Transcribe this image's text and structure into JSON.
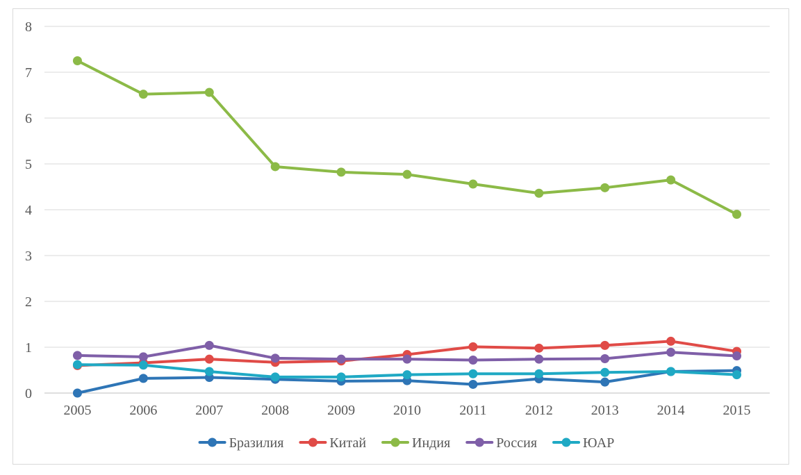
{
  "chart_data": {
    "type": "line",
    "title": "",
    "xlabel": "",
    "ylabel": "",
    "categories": [
      "2005",
      "2006",
      "2007",
      "2008",
      "2009",
      "2010",
      "2011",
      "2012",
      "2013",
      "2014",
      "2015"
    ],
    "ylim": [
      0,
      8
    ],
    "yticks": [
      "0",
      "1",
      "2",
      "3",
      "4",
      "5",
      "6",
      "7",
      "8"
    ],
    "grid": "horizontal",
    "legend_position": "bottom",
    "series": [
      {
        "name": "Бразилия",
        "color": "#2E75B6",
        "values": [
          0.0,
          0.32,
          0.34,
          0.3,
          0.26,
          0.27,
          0.19,
          0.31,
          0.24,
          0.47,
          0.49
        ]
      },
      {
        "name": "Китай",
        "color": "#E04B47",
        "values": [
          0.6,
          0.66,
          0.74,
          0.67,
          0.7,
          0.84,
          1.01,
          0.98,
          1.04,
          1.13,
          0.91
        ]
      },
      {
        "name": "Индия",
        "color": "#8CBA47",
        "values": [
          7.25,
          6.52,
          6.56,
          4.94,
          4.82,
          4.77,
          4.56,
          4.36,
          4.48,
          4.65,
          3.9
        ]
      },
      {
        "name": "Россия",
        "color": "#7F5FA8",
        "values": [
          0.82,
          0.79,
          1.04,
          0.76,
          0.74,
          0.74,
          0.72,
          0.74,
          0.75,
          0.89,
          0.81
        ]
      },
      {
        "name": "ЮАР",
        "color": "#1FA9C4",
        "values": [
          0.62,
          0.61,
          0.47,
          0.35,
          0.35,
          0.4,
          0.42,
          0.42,
          0.45,
          0.47,
          0.4
        ]
      }
    ]
  }
}
